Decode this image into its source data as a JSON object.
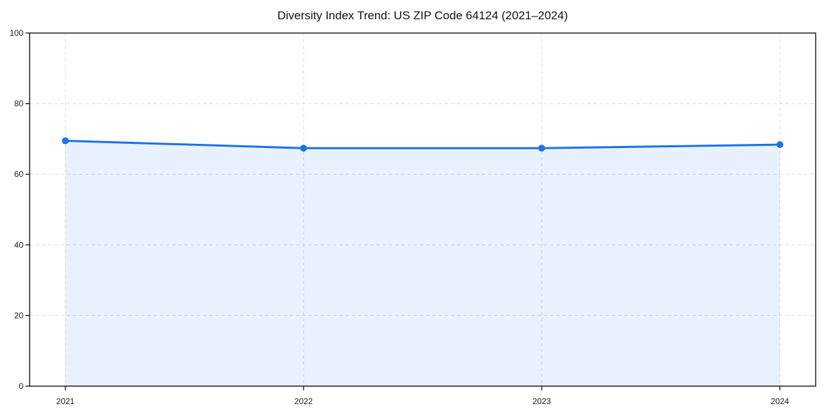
{
  "chart_data": {
    "type": "area",
    "title": "Diversity Index Trend: US ZIP Code 64124 (2021–2024)",
    "categories": [
      "2021",
      "2022",
      "2023",
      "2024"
    ],
    "series": [
      {
        "name": "Diversity Index",
        "values": [
          69.5,
          67.4,
          67.4,
          68.4
        ]
      }
    ],
    "xlabel": "",
    "ylabel": "",
    "ylim": [
      0,
      100
    ],
    "yticks": [
      0,
      20,
      40,
      60,
      80,
      100
    ],
    "grid": "dashed",
    "legend": "none",
    "colors": {
      "line": "#1a73e8",
      "fill": "rgba(26,115,232,0.10)",
      "grid": "#dcdcdc",
      "axis": "#000000",
      "text": "#1a1a1a",
      "background": "#ffffff"
    }
  }
}
